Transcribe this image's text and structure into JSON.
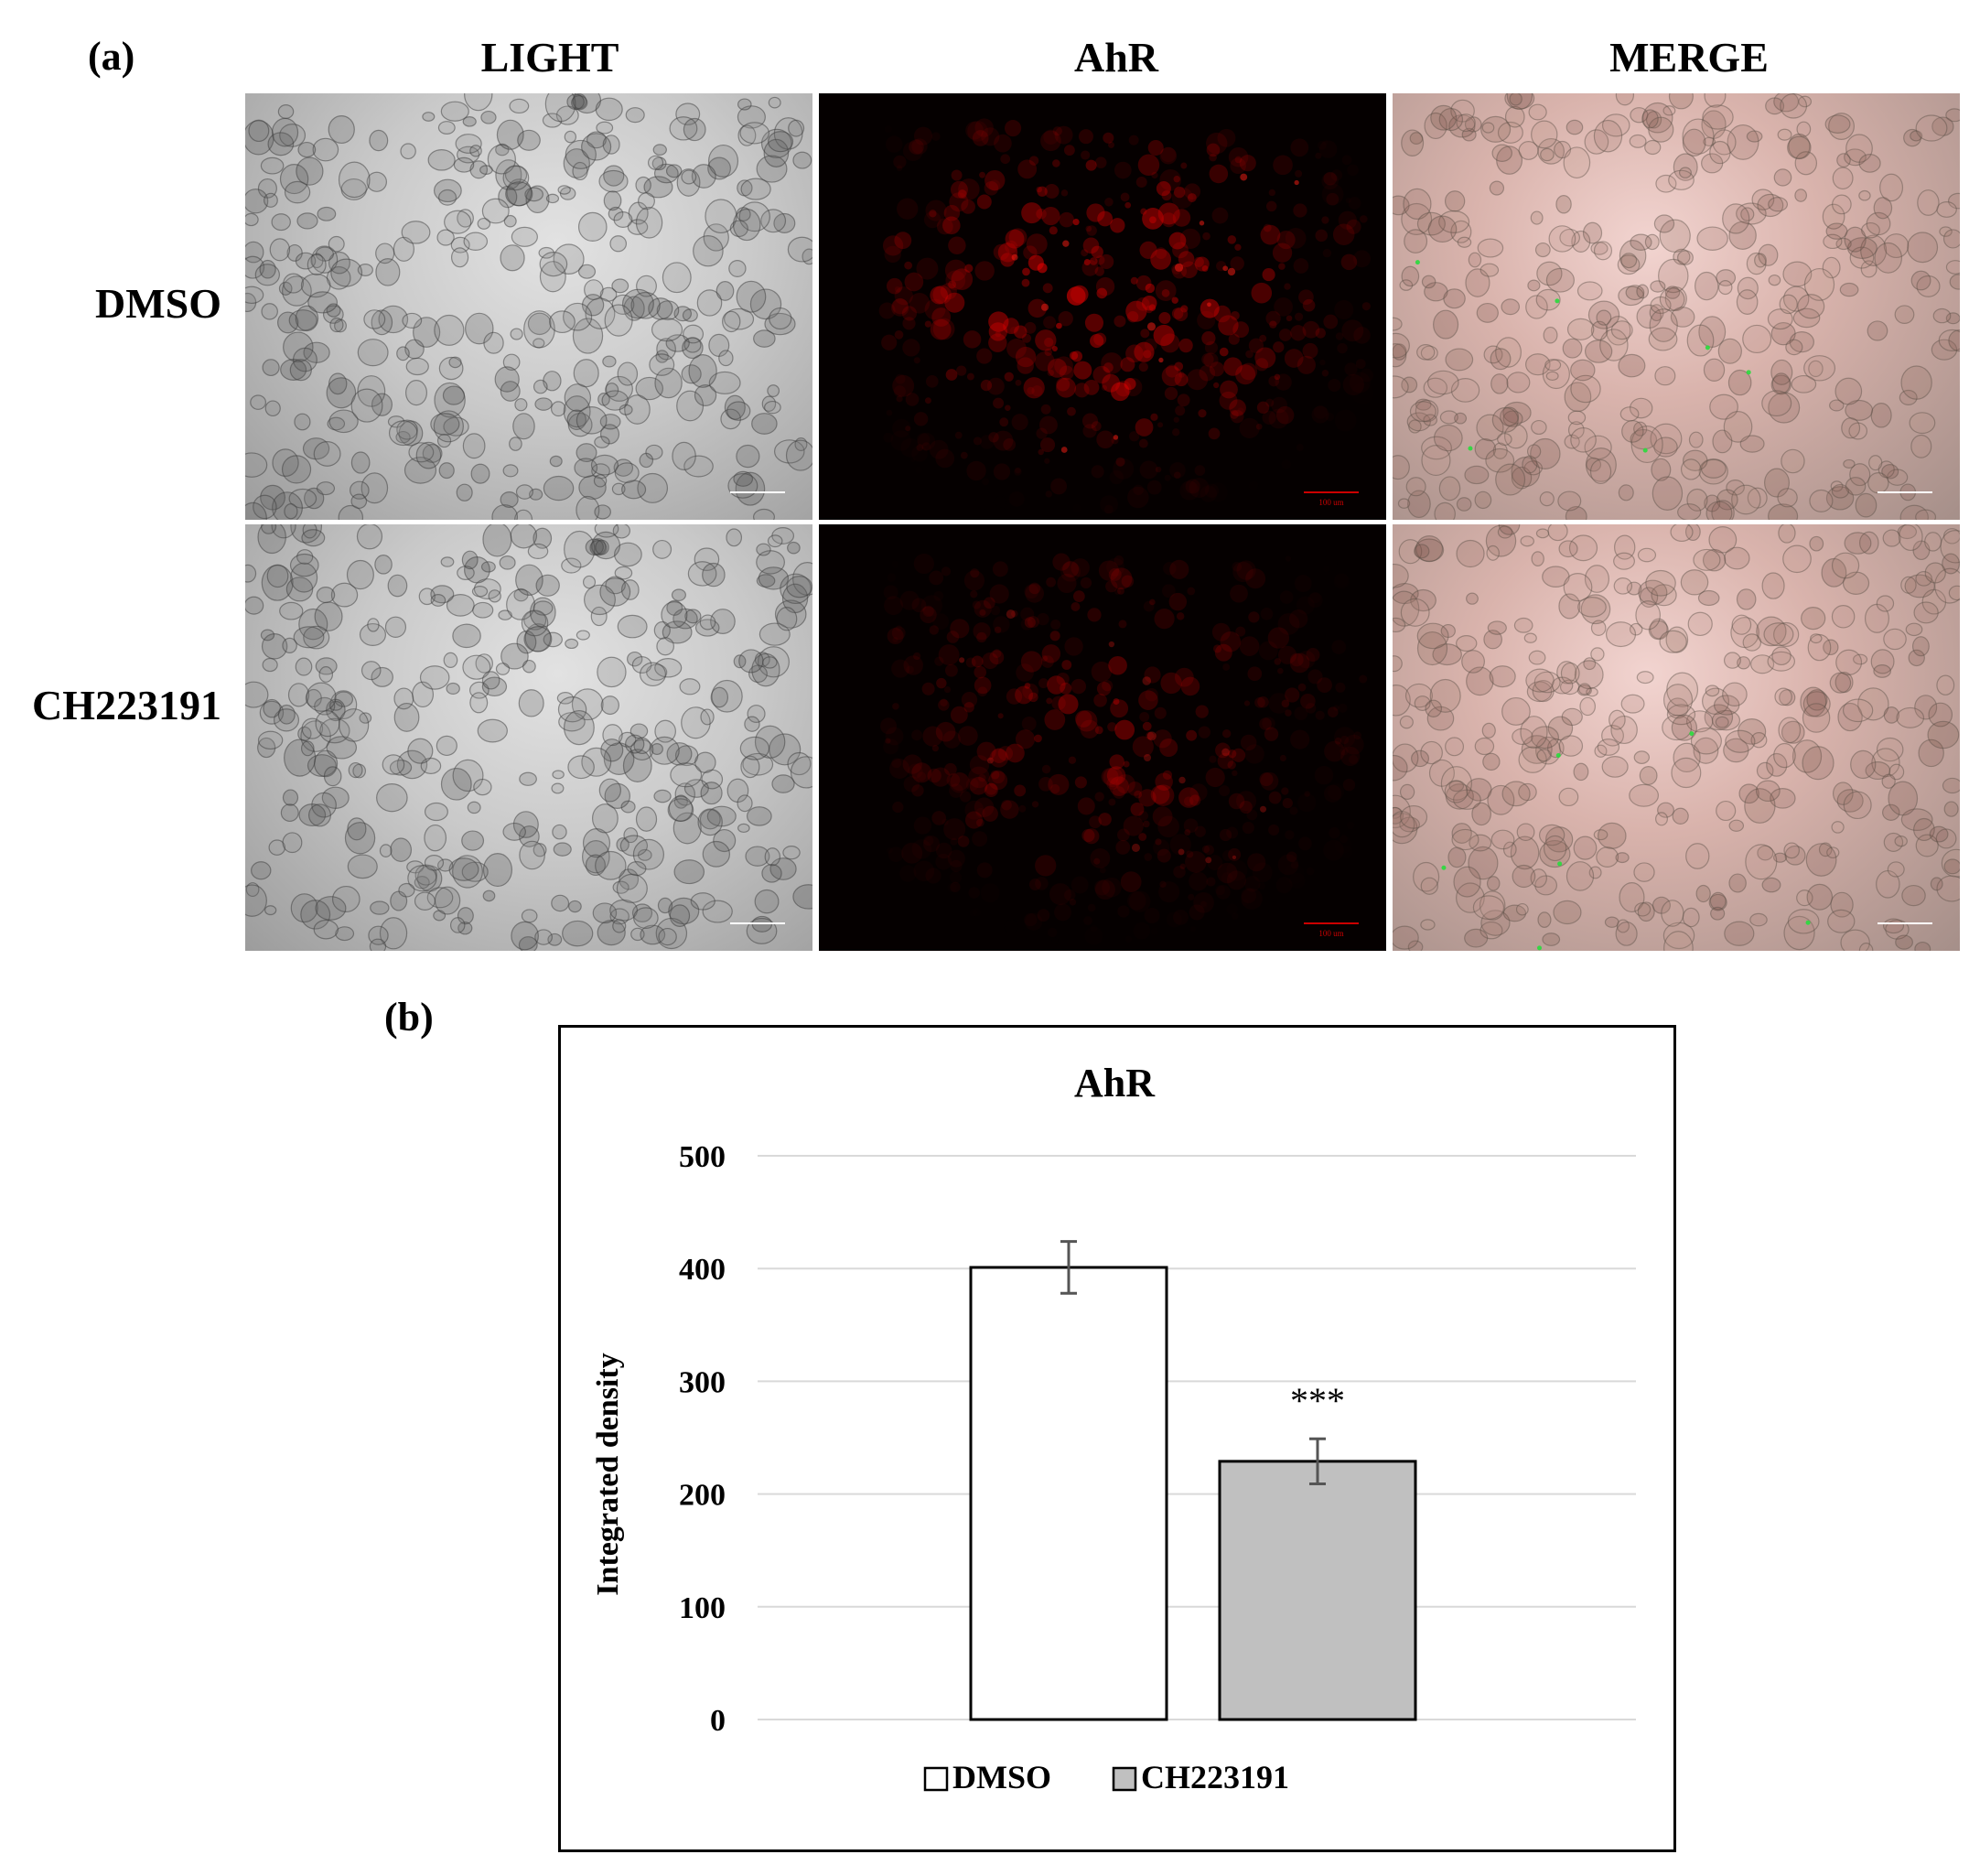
{
  "panel_a": {
    "tag": "(a)",
    "columns": [
      "LIGHT",
      "AhR",
      "MERGE"
    ],
    "rows": [
      "DMSO",
      "CH223191"
    ],
    "scale_bar_label": "100 um"
  },
  "panel_b": {
    "tag": "(b)"
  },
  "chart_data": {
    "type": "bar",
    "title": "AhR",
    "ylabel": "Integrated density",
    "xlabel": "",
    "categories": [
      "DMSO",
      "CH223191"
    ],
    "values": [
      401,
      229
    ],
    "errors": [
      23,
      20
    ],
    "ylim": [
      0,
      500
    ],
    "yticks": [
      0,
      100,
      200,
      300,
      400,
      500
    ],
    "annotations": [
      {
        "category": "CH223191",
        "text": "***"
      }
    ],
    "bar_colors": [
      "#ffffff",
      "#c0c0c0"
    ],
    "grid": true,
    "legend": {
      "position": "bottom",
      "entries": [
        "DMSO",
        "CH223191"
      ]
    }
  }
}
